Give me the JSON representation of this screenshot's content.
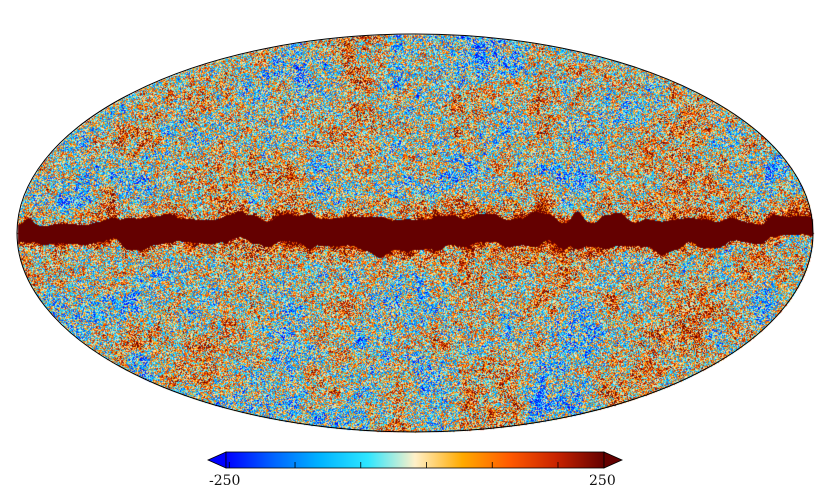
{
  "figure": {
    "projection": "mollweide",
    "map_kind": "full-sky temperature map"
  },
  "colorbar": {
    "min_label": "-250",
    "max_label": "250",
    "min_value": -250,
    "max_value": 250,
    "extend": "both",
    "colors": [
      "#0000ff",
      "#0064ff",
      "#00b4ff",
      "#2ee6ff",
      "#fff0c8",
      "#ffaa00",
      "#ff5a00",
      "#c82300",
      "#640000"
    ]
  }
}
